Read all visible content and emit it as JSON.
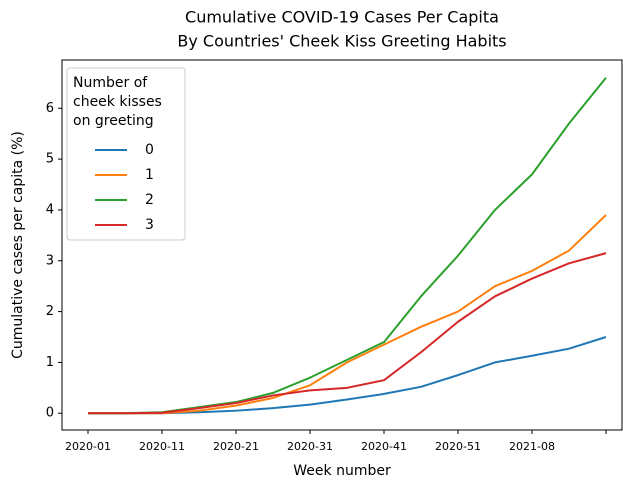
{
  "chart_data": {
    "type": "line",
    "title": [
      "Cumulative COVID-19 Cases Per Capita",
      "By Countries' Cheek Kiss Greeting Habits"
    ],
    "x_label": "Week number",
    "y_label": "Cumulative cases per capita (%)",
    "categories": [
      "2020-01",
      null,
      "2020-11",
      null,
      "2020-21",
      null,
      "2020-31",
      null,
      "2020-41",
      null,
      "2020-51",
      null,
      "2021-08",
      null,
      null
    ],
    "legend_title": [
      "Number of",
      "cheek kisses",
      "on greeting"
    ],
    "legend_position": "upper left",
    "series": [
      {
        "name": "0",
        "color": "#1f77b4",
        "values": [
          0,
          0,
          0,
          0.02,
          0.05,
          0.1,
          0.17,
          0.27,
          0.38,
          0.52,
          0.75,
          1.0,
          1.13,
          1.27,
          1.5
        ]
      },
      {
        "name": "1",
        "color": "#ff7f0e",
        "values": [
          0,
          0,
          0,
          0.05,
          0.15,
          0.3,
          0.55,
          1.0,
          1.35,
          1.7,
          2.0,
          2.5,
          2.8,
          3.2,
          3.9
        ]
      },
      {
        "name": "2",
        "color": "#2ca02c",
        "values": [
          0,
          0,
          0.02,
          0.12,
          0.22,
          0.4,
          0.7,
          1.05,
          1.4,
          2.3,
          3.1,
          4.0,
          4.7,
          5.7,
          6.6
        ]
      },
      {
        "name": "3",
        "color": "#d62728",
        "values": [
          0,
          0,
          0.01,
          0.1,
          0.2,
          0.35,
          0.45,
          0.5,
          0.65,
          1.2,
          1.8,
          2.3,
          2.65,
          2.95,
          3.15
        ]
      }
    ],
    "ylim": [
      -0.33,
      6.95
    ],
    "yticks": [
      0,
      1,
      2,
      3,
      4,
      5,
      6
    ],
    "grid": false
  }
}
